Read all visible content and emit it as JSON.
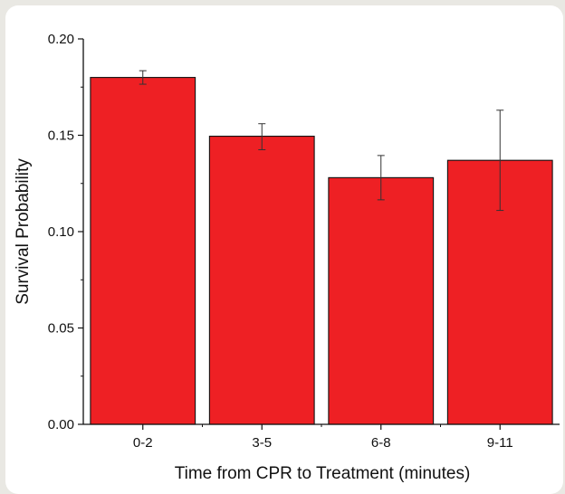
{
  "chart_data": {
    "type": "bar",
    "title": "",
    "xlabel": "Time from CPR to Treatment (minutes)",
    "ylabel": "Survival Probability",
    "categories": [
      "0-2",
      "3-5",
      "6-8",
      "9-11"
    ],
    "values": [
      0.18,
      0.1495,
      0.128,
      0.137
    ],
    "error_low": [
      0.1765,
      0.1425,
      0.1165,
      0.111
    ],
    "error_high": [
      0.1835,
      0.156,
      0.1395,
      0.163
    ],
    "ylim": [
      0,
      0.2
    ],
    "yticks": [
      "0.00",
      "0.05",
      "0.10",
      "0.15",
      "0.20"
    ],
    "grid": false,
    "bar_color": "#ee2024"
  }
}
